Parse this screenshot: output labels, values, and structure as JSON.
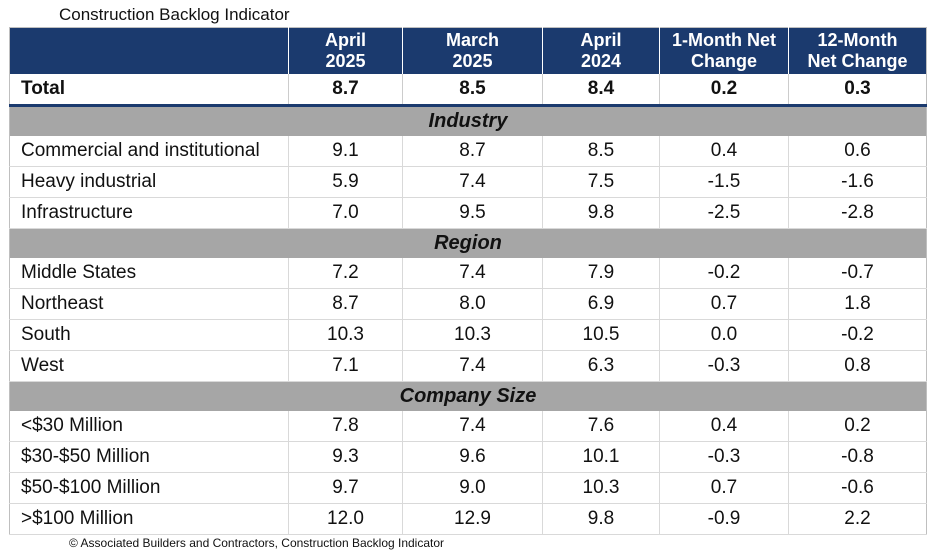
{
  "title": "Construction Backlog Indicator",
  "footer": "© Associated Builders and Contractors, Construction Backlog Indicator",
  "colors": {
    "header_bg": "#1b3a6e",
    "header_text": "#ffffff",
    "section_bg": "#a6a6a6"
  },
  "chart_data": {
    "type": "table",
    "title": "Construction Backlog Indicator",
    "columns": [
      "",
      "April\n2025",
      "March\n2025",
      "April\n2024",
      "1-Month Net\nChange",
      "12-Month\nNet Change"
    ],
    "column_labels": {
      "c1_l1": "April",
      "c1_l2": "2025",
      "c2_l1": "March",
      "c2_l2": "2025",
      "c3_l1": "April",
      "c3_l2": "2024",
      "c4_l1": "1-Month Net",
      "c4_l2": "Change",
      "c5_l1": "12-Month",
      "c5_l2": "Net Change"
    },
    "total": {
      "label": "Total",
      "values": [
        "8.7",
        "8.5",
        "8.4",
        "0.2",
        "0.3"
      ]
    },
    "sections": [
      {
        "name": "Industry",
        "rows": [
          {
            "label": "Commercial and institutional",
            "values": [
              "9.1",
              "8.7",
              "8.5",
              "0.4",
              "0.6"
            ]
          },
          {
            "label": "Heavy industrial",
            "values": [
              "5.9",
              "7.4",
              "7.5",
              "-1.5",
              "-1.6"
            ]
          },
          {
            "label": "Infrastructure",
            "values": [
              "7.0",
              "9.5",
              "9.8",
              "-2.5",
              "-2.8"
            ]
          }
        ]
      },
      {
        "name": "Region",
        "rows": [
          {
            "label": "Middle States",
            "values": [
              "7.2",
              "7.4",
              "7.9",
              "-0.2",
              "-0.7"
            ]
          },
          {
            "label": "Northeast",
            "values": [
              "8.7",
              "8.0",
              "6.9",
              "0.7",
              "1.8"
            ]
          },
          {
            "label": "South",
            "values": [
              "10.3",
              "10.3",
              "10.5",
              "0.0",
              "-0.2"
            ]
          },
          {
            "label": "West",
            "values": [
              "7.1",
              "7.4",
              "6.3",
              "-0.3",
              "0.8"
            ]
          }
        ]
      },
      {
        "name": "Company Size",
        "rows": [
          {
            "label": "<$30 Million",
            "values": [
              "7.8",
              "7.4",
              "7.6",
              "0.4",
              "0.2"
            ]
          },
          {
            "label": "$30-$50 Million",
            "values": [
              "9.3",
              "9.6",
              "10.1",
              "-0.3",
              "-0.8"
            ]
          },
          {
            "label": "$50-$100 Million",
            "values": [
              "9.7",
              "9.0",
              "10.3",
              "0.7",
              "-0.6"
            ]
          },
          {
            "label": ">$100 Million",
            "values": [
              "12.0",
              "12.9",
              "9.8",
              "-0.9",
              "2.2"
            ]
          }
        ]
      }
    ]
  }
}
